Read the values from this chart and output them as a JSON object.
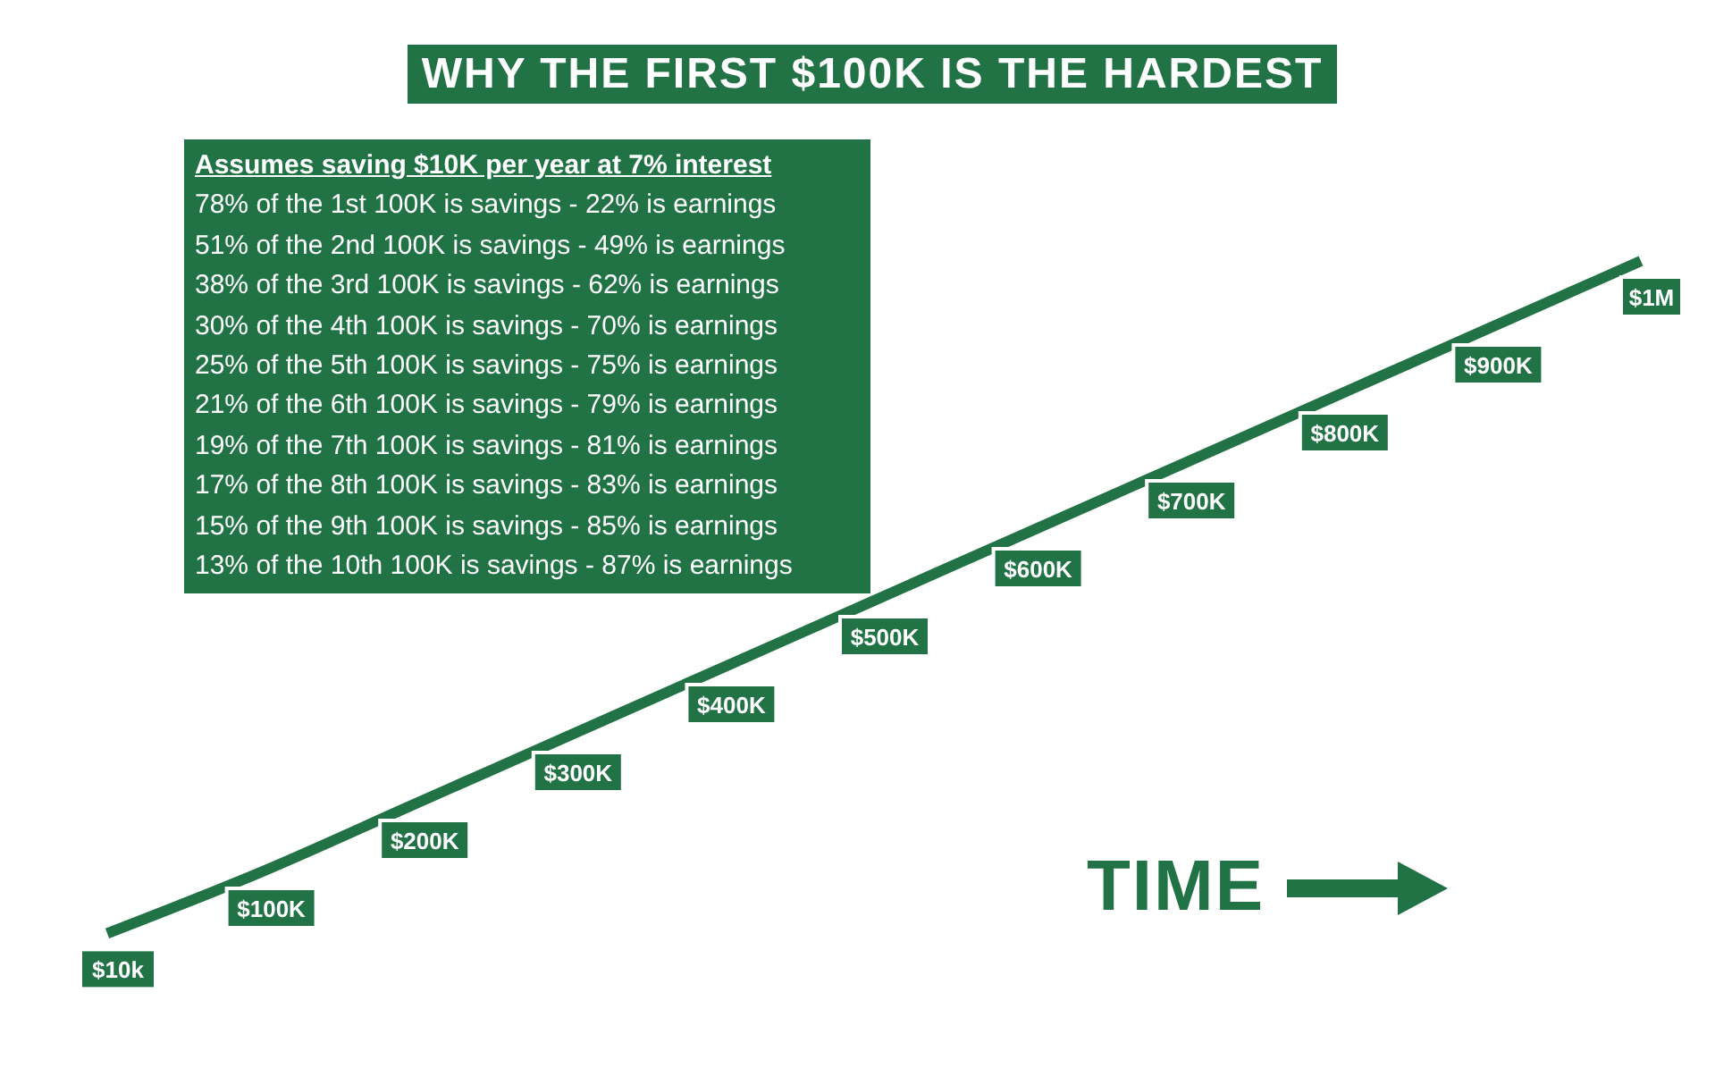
{
  "chart_data": {
    "type": "line",
    "title": "WHY THE FIRST $100K IS THE HARDEST",
    "xlabel": "TIME",
    "categories": [
      null,
      null,
      null,
      null,
      null,
      null,
      null,
      null,
      null,
      null,
      null
    ],
    "series": [
      {
        "color": "#217346",
        "values": [
          10000,
          100000,
          200000,
          300000,
          400000,
          500000,
          600000,
          700000,
          800000,
          900000,
          1000000
        ],
        "value_labels": [
          "$10k",
          "$100K",
          "$200K",
          "$300K",
          "$400K",
          "$500K",
          "$600K",
          "$700K",
          "$800K",
          "$900K",
          "$1M"
        ]
      }
    ],
    "annotations": [
      "Assumes saving $10K per year at 7% interest",
      "78% of the 1st 100K is savings - 22% is earnings",
      "51% of the 2nd 100K is savings - 49% is earnings",
      "38% of the 3rd 100K is savings - 62% is earnings",
      "30% of the 4th 100K is savings - 70% is earnings",
      "25% of the 5th 100K is savings - 75% is earnings",
      "21% of the 6th 100K is savings - 79% is earnings",
      "19% of the 7th 100K is savings - 81% is earnings",
      "17% of the 8th 100K is savings - 83% is earnings",
      "15% of the 9th 100K is savings - 85% is earnings",
      "13% of the 10th 100K is savings - 87% is earnings"
    ],
    "marker": "none",
    "grid": false,
    "legend": false
  }
}
